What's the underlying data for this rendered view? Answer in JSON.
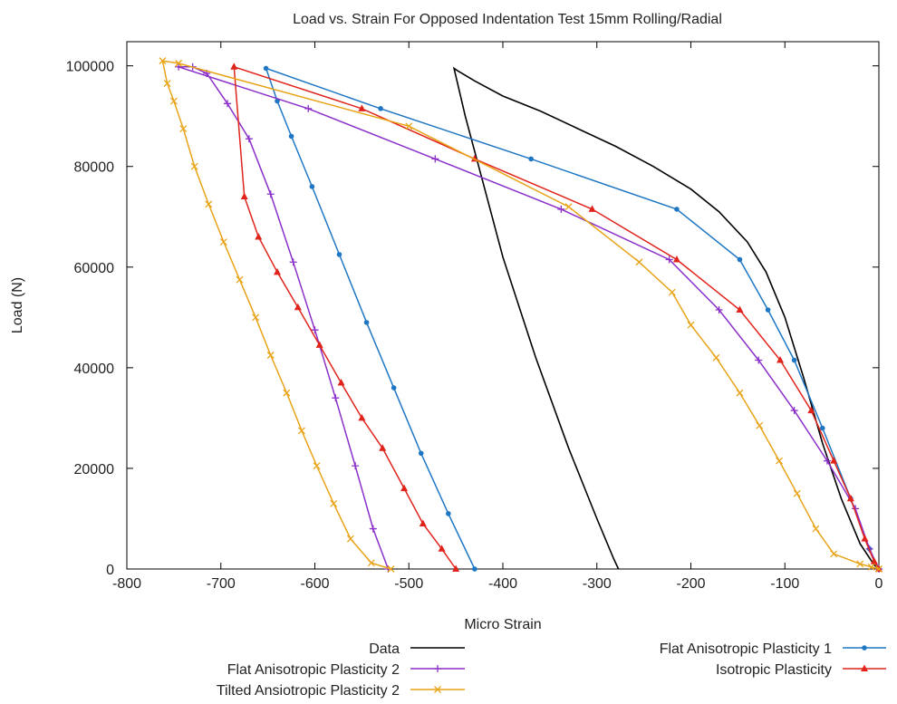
{
  "chart_data": {
    "type": "line",
    "title": "Load vs. Strain For Opposed Indentation Test 15mm Rolling/Radial",
    "xlabel": "Micro Strain",
    "ylabel": "Load (N)",
    "xlim": [
      -800,
      0
    ],
    "ylim": [
      0,
      105000
    ],
    "xticks": [
      -800,
      -700,
      -600,
      -500,
      -400,
      -300,
      -200,
      -100,
      0
    ],
    "yticks": [
      0,
      20000,
      40000,
      60000,
      80000,
      100000
    ],
    "grid": false,
    "legend_position": "bottom",
    "series": [
      {
        "name": "Data",
        "color": "#000000",
        "marker": "none",
        "x": [
          -277,
          -282,
          -300,
          -330,
          -365,
          -400,
          -420,
          -440,
          -452,
          -448,
          -430,
          -400,
          -360,
          -320,
          -280,
          -240,
          -200,
          -170,
          -140,
          -120,
          -100,
          -80,
          -60,
          -40,
          -20,
          -5,
          0
        ],
        "y": [
          0,
          2000,
          10000,
          24000,
          42000,
          62000,
          76000,
          90000,
          99500,
          99000,
          97000,
          94000,
          91000,
          87500,
          84000,
          80000,
          75500,
          71000,
          65000,
          59000,
          50000,
          38000,
          25000,
          14000,
          5000,
          800,
          0
        ]
      },
      {
        "name": "Flat Anisotropic Plasticity 1",
        "color": "#1f77c4",
        "marker": "circle",
        "x": [
          -430,
          -458,
          -487,
          -516,
          -545,
          -574,
          -603,
          -625,
          -640,
          -652,
          -530,
          -370,
          -215,
          -148,
          -118,
          -90,
          -60,
          -30,
          -10,
          0
        ],
        "y": [
          0,
          11000,
          23000,
          36000,
          49000,
          62500,
          76000,
          86000,
          93000,
          99500,
          91500,
          81500,
          71500,
          61500,
          51500,
          41500,
          28000,
          14000,
          4000,
          0
        ]
      },
      {
        "name": "Flat Anisotropic Plasticity 2",
        "color": "#8b2fc9",
        "marker": "plus",
        "x": [
          -522,
          -538,
          -557,
          -578,
          -600,
          -623,
          -647,
          -670,
          -693,
          -715,
          -730,
          -745,
          -607,
          -472,
          -338,
          -223,
          -170,
          -128,
          -90,
          -55,
          -25,
          -10,
          0
        ],
        "y": [
          0,
          8000,
          20500,
          34000,
          47500,
          61000,
          74500,
          85500,
          92500,
          98500,
          99800,
          99800,
          91500,
          81500,
          71500,
          61500,
          51500,
          41500,
          31500,
          21500,
          12000,
          4000,
          0
        ]
      },
      {
        "name": "Isotropic Plasticity",
        "color": "#e0241c",
        "marker": "triangle",
        "x": [
          -450,
          -465,
          -485,
          -505,
          -528,
          -550,
          -572,
          -595,
          -618,
          -640,
          -660,
          -675,
          -686,
          -550,
          -430,
          -305,
          -215,
          -148,
          -105,
          -72,
          -48,
          -30,
          -15,
          -5,
          0
        ],
        "y": [
          0,
          4000,
          9000,
          16000,
          24000,
          30000,
          37000,
          44500,
          52000,
          59000,
          66000,
          74000,
          99800,
          91500,
          81500,
          71500,
          61500,
          51500,
          41500,
          31500,
          21500,
          14000,
          6000,
          1500,
          0
        ]
      },
      {
        "name": "Tilted Ansiotropic Plasticity 2",
        "color": "#e8a317",
        "marker": "x",
        "x": [
          -519,
          -540,
          -562,
          -580,
          -598,
          -614,
          -630,
          -647,
          -663,
          -680,
          -697,
          -713,
          -728,
          -740,
          -750,
          -757,
          -762,
          -745,
          -500,
          -330,
          -255,
          -220,
          -200,
          -173,
          -148,
          -127,
          -106,
          -87,
          -67,
          -48,
          -20,
          -8,
          0
        ],
        "y": [
          0,
          1200,
          6000,
          13000,
          20500,
          27500,
          35000,
          42500,
          50000,
          57500,
          65000,
          72500,
          80000,
          87500,
          93000,
          96500,
          101000,
          100500,
          88000,
          72000,
          61000,
          55000,
          48500,
          42000,
          35000,
          28500,
          21500,
          15000,
          8000,
          3000,
          1000,
          400,
          0
        ]
      }
    ]
  }
}
